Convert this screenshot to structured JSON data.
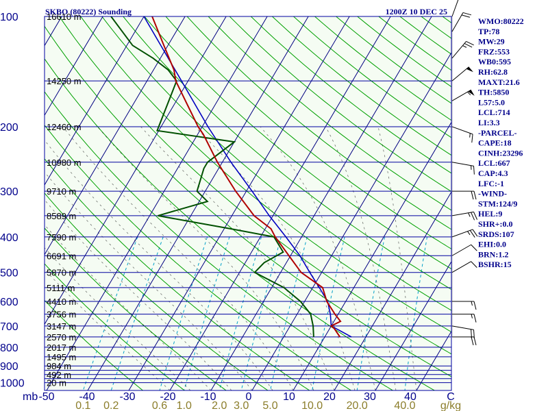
{
  "header": {
    "station": "SKBO (80222) Sounding",
    "time": "1200Z 10 DEC 25"
  },
  "indices": [
    "WMO:80222",
    "TP:78",
    "MW:29",
    "FRZ:553",
    "WB0:595",
    "RH:62.8",
    "MAXT:21.6",
    "TH:5850",
    "L57:5.0",
    "LCL:714",
    "LI:3.3",
    "-PARCEL-",
    "CAPE:18",
    "CINH:23296",
    "LCL:667",
    "CAP:4.3",
    "LFC:-1",
    "-WIND-",
    "STM:124/9",
    "HEL:9",
    "SHR+:0.0",
    "SRDS:107",
    "EHI:0.0",
    "BRN:1.2",
    "BSHR:15"
  ],
  "colors": {
    "background": "#f5fcf3",
    "isobar": "#0000a0",
    "isotherm": "#000080",
    "dry_adiabat": "#00a000",
    "moist_adiabat": "#000000",
    "mixing_ratio": "#00a0c8",
    "temperature": "#b00000",
    "dewpoint": "#005000",
    "parcel": "#0000c0",
    "mixing_label": "#8b7d2a"
  },
  "chart_data": {
    "type": "skew-t",
    "x_unit_label": "mb",
    "x_ticks_C": [
      -50,
      -40,
      -30,
      -20,
      -10,
      0,
      10,
      20,
      30,
      40
    ],
    "x_tick_labels": [
      "-50",
      "-40",
      "-30",
      "-20",
      "-10",
      "0",
      "10",
      "20",
      "30",
      "40",
      "C"
    ],
    "mixing_ratio_labels": [
      "0.1",
      "0.2",
      "0.6",
      "1.0",
      "2.0",
      "3.0",
      "5.0",
      "10.0",
      "20.0",
      "40.0",
      "g/kg"
    ],
    "mixing_ratio_g_kg": [
      0.1,
      0.2,
      0.6,
      1.0,
      2.0,
      3.0,
      5.0,
      10.0,
      20.0,
      40.0
    ],
    "pressure_levels": [
      100,
      150,
      200,
      250,
      300,
      350,
      400,
      450,
      500,
      550,
      600,
      650,
      700,
      750,
      800,
      850,
      900,
      925,
      950,
      975,
      1000
    ],
    "pressure_labels": [
      {
        "p": 100,
        "label": "100"
      },
      {
        "p": 200,
        "label": "200"
      },
      {
        "p": 300,
        "label": "300"
      },
      {
        "p": 400,
        "label": "400"
      },
      {
        "p": 500,
        "label": "500"
      },
      {
        "p": 600,
        "label": "600"
      },
      {
        "p": 700,
        "label": "700"
      },
      {
        "p": 800,
        "label": "800"
      },
      {
        "p": 900,
        "label": "900"
      },
      {
        "p": 1000,
        "label": "1000"
      }
    ],
    "height_labels": [
      {
        "p": 100,
        "label": "16610 m"
      },
      {
        "p": 150,
        "label": "14250 m"
      },
      {
        "p": 200,
        "label": "12460 m"
      },
      {
        "p": 250,
        "label": "10980 m"
      },
      {
        "p": 300,
        "label": "9710 m"
      },
      {
        "p": 350,
        "label": "8589 m"
      },
      {
        "p": 400,
        "label": "7590 m"
      },
      {
        "p": 450,
        "label": "6691 m"
      },
      {
        "p": 500,
        "label": "5870 m"
      },
      {
        "p": 550,
        "label": "5111 m"
      },
      {
        "p": 600,
        "label": "4410 m"
      },
      {
        "p": 650,
        "label": "3756 m"
      },
      {
        "p": 700,
        "label": "3147 m"
      },
      {
        "p": 750,
        "label": "2570 m"
      },
      {
        "p": 800,
        "label": "2017 m"
      },
      {
        "p": 850,
        "label": "1495 m"
      },
      {
        "p": 900,
        "label": "984 m"
      },
      {
        "p": 950,
        "label": "492 m"
      },
      {
        "p": 1000,
        "label": "20 m"
      }
    ],
    "temperature": [
      {
        "p": 750,
        "t": 13.7
      },
      {
        "p": 710,
        "t": 11.0
      },
      {
        "p": 700,
        "t": 10.0
      },
      {
        "p": 680,
        "t": 11.6
      },
      {
        "p": 650,
        "t": 9.2
      },
      {
        "p": 600,
        "t": 5.4
      },
      {
        "p": 550,
        "t": 2.4
      },
      {
        "p": 500,
        "t": -5.0
      },
      {
        "p": 400,
        "t": -16.4
      },
      {
        "p": 380,
        "t": -18.6
      },
      {
        "p": 350,
        "t": -24.6
      },
      {
        "p": 300,
        "t": -32.6
      },
      {
        "p": 250,
        "t": -41.2
      },
      {
        "p": 210,
        "t": -48.6
      },
      {
        "p": 200,
        "t": -51.0
      },
      {
        "p": 150,
        "t": -63.0
      },
      {
        "p": 140,
        "t": -65.0
      },
      {
        "p": 120,
        "t": -71.0
      },
      {
        "p": 100,
        "t": -78.0
      }
    ],
    "dewpoint": [
      {
        "p": 750,
        "t": 7.3
      },
      {
        "p": 700,
        "t": 5.6
      },
      {
        "p": 650,
        "t": 3.3
      },
      {
        "p": 600,
        "t": -1.0
      },
      {
        "p": 550,
        "t": -7.0
      },
      {
        "p": 500,
        "t": -16.3
      },
      {
        "p": 470,
        "t": -15.4
      },
      {
        "p": 440,
        "t": -12.3
      },
      {
        "p": 400,
        "t": -16.7
      },
      {
        "p": 380,
        "t": -28.4
      },
      {
        "p": 350,
        "t": -48.0
      },
      {
        "p": 320,
        "t": -38.0
      },
      {
        "p": 300,
        "t": -42.0
      },
      {
        "p": 260,
        "t": -43.6
      },
      {
        "p": 250,
        "t": -43.6
      },
      {
        "p": 220,
        "t": -40.0
      },
      {
        "p": 205,
        "t": -60.4
      },
      {
        "p": 150,
        "t": -62.8
      },
      {
        "p": 140,
        "t": -66.4
      },
      {
        "p": 130,
        "t": -71.8
      },
      {
        "p": 120,
        "t": -78.6
      },
      {
        "p": 100,
        "t": -88.0
      }
    ],
    "parcel": [
      {
        "p": 750,
        "t": 16.5
      },
      {
        "p": 700,
        "t": 10.0
      },
      {
        "p": 650,
        "t": 8.1
      },
      {
        "p": 600,
        "t": 5.6
      },
      {
        "p": 550,
        "t": 1.6
      },
      {
        "p": 500,
        "t": -2.9
      },
      {
        "p": 450,
        "t": -7.7
      },
      {
        "p": 400,
        "t": -13.8
      },
      {
        "p": 350,
        "t": -20.9
      },
      {
        "p": 300,
        "t": -28.6
      },
      {
        "p": 250,
        "t": -37.9
      },
      {
        "p": 200,
        "t": -48.6
      },
      {
        "p": 150,
        "t": -61.6
      },
      {
        "p": 100,
        "t": -80.0
      }
    ],
    "wind_barbs": [
      {
        "p": 750,
        "dir": 90,
        "speed": 20
      },
      {
        "p": 700,
        "dir": 100,
        "speed": 20
      },
      {
        "p": 650,
        "dir": 90,
        "speed": 15
      },
      {
        "p": 600,
        "dir": 90,
        "speed": 15
      },
      {
        "p": 500,
        "dir": 60,
        "speed": 10
      },
      {
        "p": 450,
        "dir": 60,
        "speed": 10
      },
      {
        "p": 400,
        "dir": 70,
        "speed": 25
      },
      {
        "p": 350,
        "dir": 80,
        "speed": 25
      },
      {
        "p": 300,
        "dir": 90,
        "speed": 20
      },
      {
        "p": 250,
        "dir": 100,
        "speed": 15
      },
      {
        "p": 200,
        "dir": 110,
        "speed": 15
      },
      {
        "p": 170,
        "dir": 60,
        "speed": 55
      },
      {
        "p": 150,
        "dir": 50,
        "speed": 50
      },
      {
        "p": 130,
        "dir": 40,
        "speed": 25
      },
      {
        "p": 110,
        "dir": 30,
        "speed": 20
      },
      {
        "p": 100,
        "dir": 20,
        "speed": 15
      }
    ],
    "grid": true
  }
}
